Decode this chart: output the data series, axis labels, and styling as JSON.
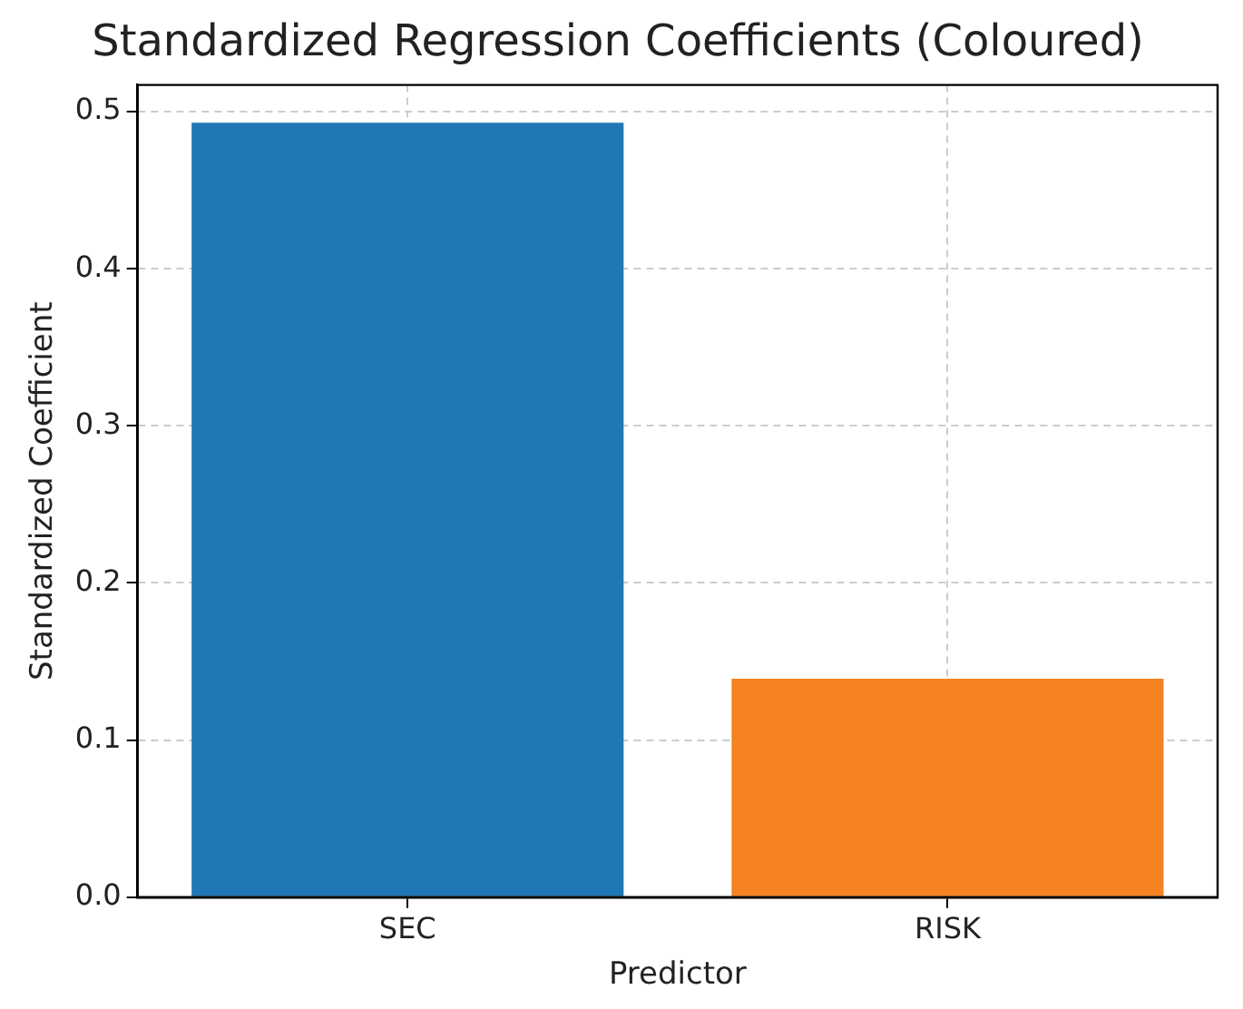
{
  "chart_data": {
    "type": "bar",
    "title": "Standardized Regression Coefficients (Coloured)",
    "xlabel": "Predictor",
    "ylabel": "Standardized Coefficient",
    "categories": [
      "SEC",
      "RISK"
    ],
    "values": [
      0.493,
      0.139
    ],
    "colors": [
      "#1f77b4",
      "#f58220"
    ],
    "ylim": [
      0,
      0.517
    ],
    "yticks": [
      {
        "value": 0,
        "label": "0.0"
      },
      {
        "value": 0.1,
        "label": "0.1"
      },
      {
        "value": 0.2,
        "label": "0.2"
      },
      {
        "value": 0.3,
        "label": "0.3"
      },
      {
        "value": 0.4,
        "label": "0.4"
      },
      {
        "value": 0.5,
        "label": "0.5"
      }
    ],
    "grid": true,
    "legend": false
  }
}
